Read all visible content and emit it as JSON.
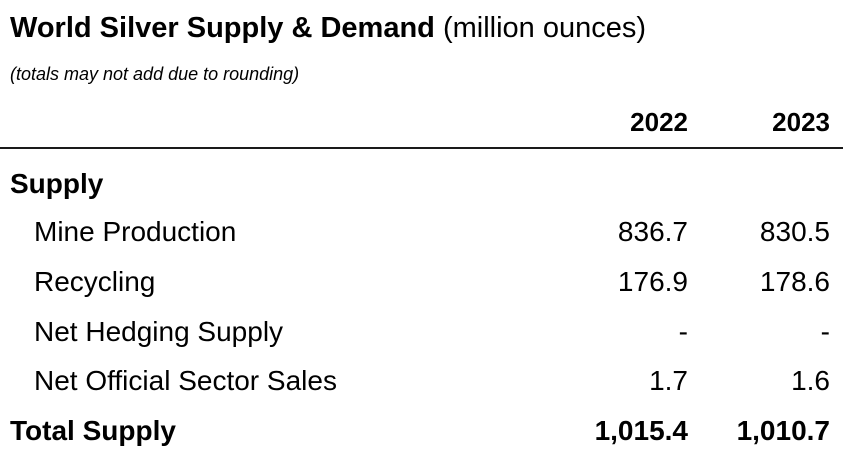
{
  "title": {
    "bold": "World Silver Supply & Demand",
    "normal": " (million ounces)"
  },
  "note": "(totals may not add due to rounding)",
  "years": [
    "2022",
    "2023"
  ],
  "section": "Supply",
  "rows": [
    {
      "label": "Mine Production",
      "v2022": "836.7",
      "v2023": "830.5"
    },
    {
      "label": "Recycling",
      "v2022": "176.9",
      "v2023": "178.6"
    },
    {
      "label": "Net Hedging Supply",
      "v2022": "-",
      "v2023": "-"
    },
    {
      "label": "Net Official Sector Sales",
      "v2022": "1.7",
      "v2023": "1.6"
    }
  ],
  "total": {
    "label": "Total Supply",
    "v2022": "1,015.4",
    "v2023": "1,010.7"
  }
}
